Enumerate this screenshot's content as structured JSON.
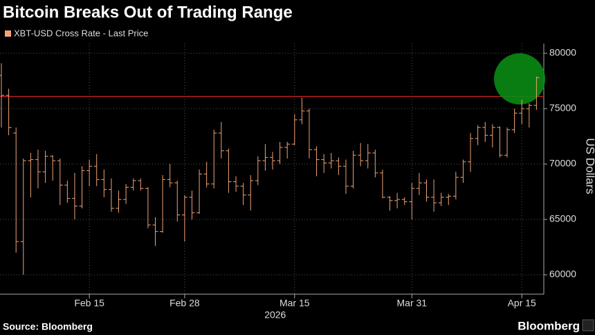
{
  "chart_data": {
    "type": "ohlc",
    "title": "Bitcoin Breaks Out of Trading Range",
    "ylabel": "US Dollars",
    "source": "Source: Bloomberg",
    "brand": "Bloomberg",
    "x_year": "2026",
    "grid": true,
    "reference_line": 76100,
    "xlim": [
      "2026-02-03",
      "2026-04-18"
    ],
    "xticks": [
      {
        "value": "2026-02-15",
        "label": "Feb 15"
      },
      {
        "value": "2026-02-28",
        "label": "Feb 28"
      },
      {
        "value": "2026-03-15",
        "label": "Mar 15"
      },
      {
        "value": "2026-03-31",
        "label": "Mar 31"
      },
      {
        "value": "2026-04-15",
        "label": "Apr 15"
      }
    ],
    "ylim": [
      58250,
      80875
    ],
    "yticks": [
      60000,
      65000,
      70000,
      75000,
      80000
    ],
    "x": [
      "2026-02-03",
      "2026-02-04",
      "2026-02-05",
      "2026-02-06",
      "2026-02-07",
      "2026-02-08",
      "2026-02-09",
      "2026-02-10",
      "2026-02-11",
      "2026-02-12",
      "2026-02-13",
      "2026-02-14",
      "2026-02-15",
      "2026-02-16",
      "2026-02-17",
      "2026-02-18",
      "2026-02-19",
      "2026-02-20",
      "2026-02-21",
      "2026-02-22",
      "2026-02-23",
      "2026-02-24",
      "2026-02-25",
      "2026-02-26",
      "2026-02-27",
      "2026-02-28",
      "2026-03-01",
      "2026-03-02",
      "2026-03-03",
      "2026-03-04",
      "2026-03-05",
      "2026-03-06",
      "2026-03-07",
      "2026-03-08",
      "2026-03-09",
      "2026-03-10",
      "2026-03-11",
      "2026-03-12",
      "2026-03-13",
      "2026-03-14",
      "2026-03-15",
      "2026-03-16",
      "2026-03-17",
      "2026-03-18",
      "2026-03-19",
      "2026-03-20",
      "2026-03-21",
      "2026-03-22",
      "2026-03-23",
      "2026-03-24",
      "2026-03-25",
      "2026-03-26",
      "2026-03-27",
      "2026-03-28",
      "2026-03-29",
      "2026-03-30",
      "2026-03-31",
      "2026-04-01",
      "2026-04-02",
      "2026-04-03",
      "2026-04-04",
      "2026-04-05",
      "2026-04-06",
      "2026-04-07",
      "2026-04-08",
      "2026-04-09",
      "2026-04-10",
      "2026-04-11",
      "2026-04-12",
      "2026-04-13",
      "2026-04-14",
      "2026-04-15",
      "2026-04-16",
      "2026-04-17"
    ],
    "series": [
      {
        "name": "XBT-USD Cross Rate - Last Price",
        "color": "#f0a474",
        "open": [
          78000,
          76200,
          72800,
          63000,
          70300,
          70400,
          69300,
          70700,
          70300,
          68100,
          66900,
          66200,
          69400,
          69800,
          68600,
          67700,
          66000,
          66800,
          67900,
          68500,
          67800,
          64500,
          63900,
          68600,
          68300,
          65400,
          67000,
          65600,
          69100,
          68200,
          72800,
          71200,
          68400,
          68000,
          67200,
          68500,
          70300,
          70600,
          70300,
          71500,
          71800,
          74000,
          74800,
          71300,
          70400,
          70100,
          70300,
          69800,
          68000,
          70800,
          70300,
          71000,
          69200,
          67000,
          66700,
          66800,
          66600,
          67800,
          68300,
          67000,
          66500,
          67000,
          67100,
          68800,
          70200,
          72300,
          73300,
          72600,
          73300,
          70800,
          73100,
          74600,
          75000,
          75300
        ],
        "high": [
          79100,
          76800,
          73300,
          70500,
          71000,
          71300,
          71200,
          70800,
          70500,
          68500,
          69200,
          69800,
          70400,
          70900,
          69500,
          68700,
          67600,
          68200,
          68700,
          68700,
          67900,
          65200,
          69000,
          70000,
          68500,
          67200,
          67600,
          69500,
          70200,
          73100,
          73800,
          71400,
          68900,
          68300,
          69000,
          70700,
          71800,
          71100,
          72000,
          72000,
          74500,
          76000,
          75000,
          71600,
          70900,
          71000,
          70600,
          70400,
          71200,
          71900,
          71800,
          71300,
          69500,
          67100,
          67400,
          67000,
          68300,
          69200,
          68600,
          68600,
          67400,
          67300,
          69300,
          70400,
          72800,
          73500,
          73800,
          73600,
          73400,
          73300,
          75000,
          75800,
          75500,
          77900
        ],
        "low": [
          73300,
          72600,
          62000,
          60000,
          67000,
          67800,
          68300,
          68500,
          66300,
          66500,
          65000,
          66000,
          68000,
          68000,
          67000,
          65700,
          65600,
          66400,
          67600,
          67600,
          64200,
          62600,
          63800,
          67900,
          64800,
          63000,
          65000,
          65500,
          67900,
          67800,
          70500,
          67400,
          67500,
          66300,
          65800,
          68100,
          69400,
          69500,
          70000,
          70500,
          71700,
          73600,
          70500,
          68900,
          69200,
          69600,
          69000,
          67300,
          67800,
          69800,
          69600,
          68800,
          66900,
          65800,
          66000,
          66300,
          65000,
          67200,
          66600,
          65700,
          66200,
          66300,
          66800,
          68300,
          69300,
          71700,
          72000,
          71500,
          70600,
          70600,
          72800,
          73600,
          73300,
          74900
        ],
        "close": [
          76200,
          73300,
          63000,
          70300,
          70400,
          69300,
          70700,
          70300,
          68100,
          66900,
          66200,
          69400,
          69800,
          68600,
          67700,
          66000,
          66800,
          67900,
          68500,
          67800,
          64500,
          63900,
          68600,
          68300,
          65400,
          67000,
          65600,
          69100,
          68200,
          72800,
          71200,
          68400,
          68000,
          67200,
          68500,
          70300,
          70600,
          70300,
          71500,
          71800,
          74000,
          74800,
          71300,
          70400,
          70100,
          70300,
          69800,
          68000,
          70800,
          70300,
          71000,
          69200,
          67000,
          66700,
          66800,
          66600,
          67800,
          68300,
          67000,
          66500,
          67000,
          67100,
          68800,
          70200,
          72300,
          73300,
          72600,
          73300,
          70800,
          73100,
          74600,
          75000,
          75300,
          77800
        ]
      }
    ]
  }
}
